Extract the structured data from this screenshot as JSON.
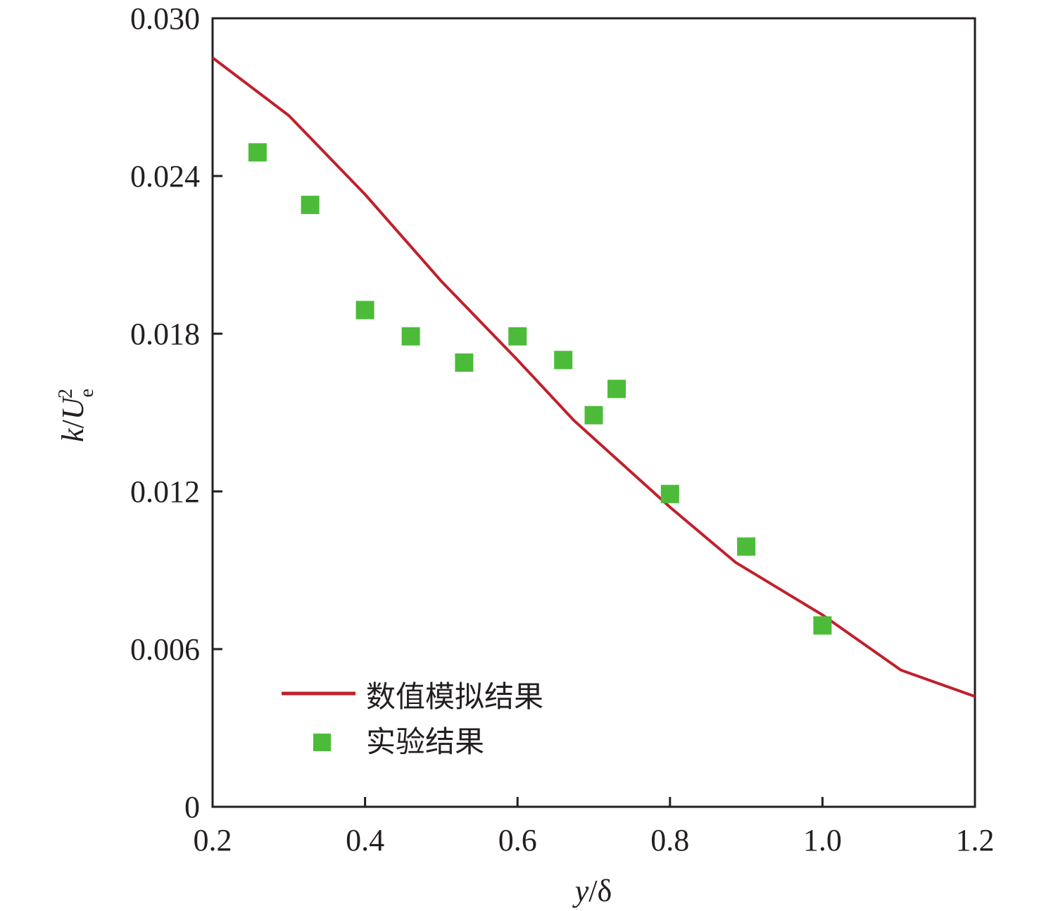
{
  "chart_data": {
    "type": "line+scatter",
    "xlabel": "y/δ",
    "ylabel": "k/U_e^2",
    "xlabel_parts": {
      "var": "y",
      "rest": "/δ"
    },
    "ylabel_parts": {
      "var": "k",
      "slash": "/",
      "U": "U",
      "sub": "e",
      "sup": "2"
    },
    "xlim": [
      0.2,
      1.2
    ],
    "ylim": [
      0,
      0.03
    ],
    "xticks": [
      0.2,
      0.4,
      0.6,
      0.8,
      1.0,
      1.2
    ],
    "xtick_labels": [
      "0.2",
      "0.4",
      "0.6",
      "0.8",
      "1.0",
      "1.2"
    ],
    "yticks": [
      0,
      0.006,
      0.012,
      0.018,
      0.024,
      0.03
    ],
    "ytick_labels": [
      "0",
      "0.006",
      "0.012",
      "0.018",
      "0.024",
      "0.030"
    ],
    "grid": false,
    "legend_position": "bottom-left",
    "series": [
      {
        "name": "数值模拟结果",
        "kind": "line",
        "color": "#c0202c",
        "x": [
          0.2,
          0.3,
          0.4,
          0.5,
          0.6,
          0.674,
          0.8,
          0.886,
          1.0,
          1.103,
          1.2
        ],
        "y": [
          0.0285,
          0.0263,
          0.0233,
          0.02,
          0.017,
          0.0147,
          0.0114,
          0.0093,
          0.0073,
          0.0052,
          0.0042
        ]
      },
      {
        "name": "实验结果",
        "kind": "scatter",
        "marker": "square",
        "color": "#4cbb3a",
        "x": [
          0.259,
          0.328,
          0.4,
          0.46,
          0.53,
          0.6,
          0.66,
          0.7,
          0.73,
          0.8,
          0.9,
          1.0
        ],
        "y": [
          0.0249,
          0.0229,
          0.0189,
          0.0179,
          0.0169,
          0.0179,
          0.017,
          0.0149,
          0.0159,
          0.0119,
          0.0099,
          0.0069
        ]
      }
    ]
  }
}
